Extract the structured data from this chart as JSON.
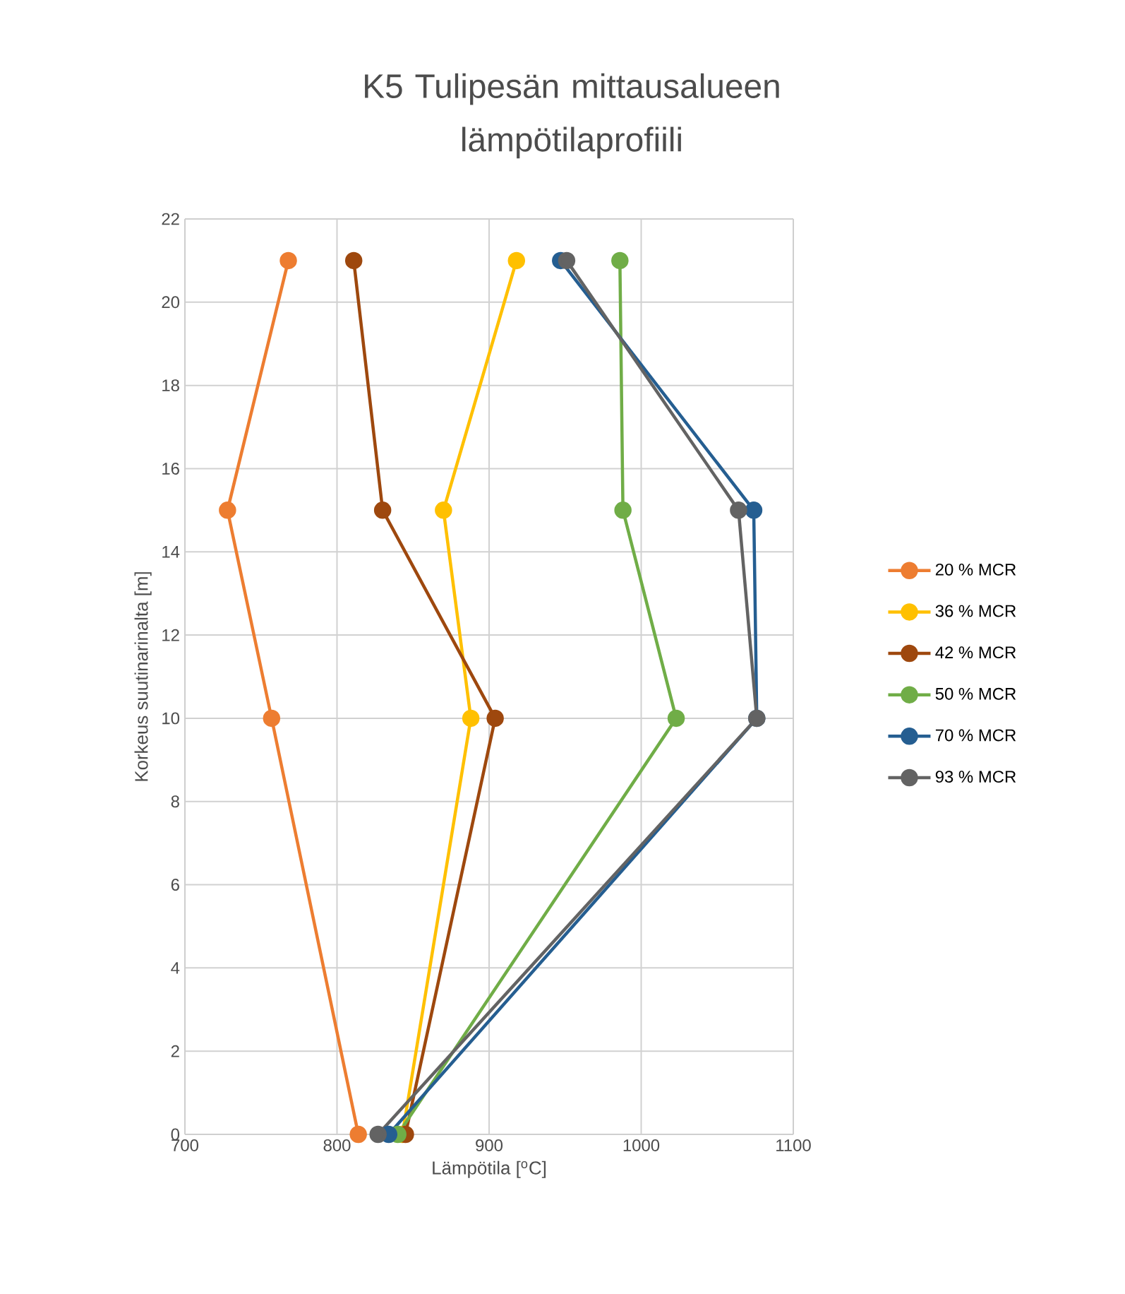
{
  "chart_data": {
    "type": "line",
    "title": "K5 Tulipesän mittausalueen lämpötilaprofiili",
    "xlabel": "Lämpötila [$^{o}$C]",
    "ylabel": "Korkeus suutinarinalta [m]",
    "xlim": [
      700,
      1100
    ],
    "xticks": [
      700,
      800,
      900,
      1000,
      1100
    ],
    "ylim": [
      0,
      22
    ],
    "yticks": [
      0,
      2,
      4,
      6,
      8,
      10,
      12,
      14,
      16,
      18,
      20,
      22
    ],
    "grid": true,
    "legend": "right",
    "marker": "circle",
    "line_style": "solid",
    "series": [
      {
        "name": "20 % MCR",
        "color": "#ed7d31",
        "x": [
          768,
          728,
          757,
          814
        ],
        "values": [
          21,
          15,
          10,
          0
        ]
      },
      {
        "name": "36 % MCR",
        "color": "#ffc000",
        "x": [
          918,
          870,
          888,
          843
        ],
        "values": [
          21,
          15,
          10,
          0
        ]
      },
      {
        "name": "42 % MCR",
        "color": "#9e480e",
        "x": [
          811,
          830,
          904,
          845
        ],
        "values": [
          21,
          15,
          10,
          0
        ]
      },
      {
        "name": "50 % MCR",
        "color": "#70ad47",
        "x": [
          986,
          988,
          1023,
          840
        ],
        "values": [
          21,
          15,
          10,
          0
        ]
      },
      {
        "name": "70 % MCR",
        "color": "#255e91",
        "x": [
          947,
          1074,
          1076,
          834
        ],
        "values": [
          21,
          15,
          10,
          0
        ]
      },
      {
        "name": "93 % MCR",
        "color": "#636363",
        "x": [
          951,
          1064,
          1076,
          827
        ],
        "values": [
          21,
          15,
          10,
          0
        ]
      }
    ]
  }
}
